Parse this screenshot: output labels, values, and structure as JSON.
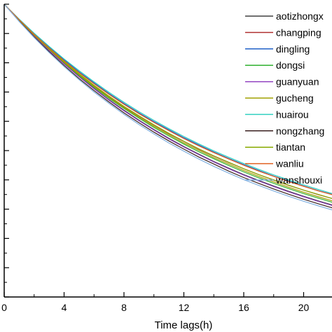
{
  "chart_data": {
    "type": "line",
    "title": "",
    "xlabel": "Time lags(h)",
    "ylabel": "",
    "xlim": [
      0,
      23
    ],
    "ylim": [
      0,
      1
    ],
    "x_ticks": [
      0,
      4,
      8,
      12,
      16,
      20
    ],
    "x_tick_labels": [
      "0",
      "4",
      "8",
      "12",
      "16",
      "20"
    ],
    "y_ticks": [
      0,
      0.1,
      0.2,
      0.3,
      0.4,
      0.5,
      0.6,
      0.7,
      0.8,
      0.9,
      1.0
    ],
    "grid": false,
    "legend_position": "top-right",
    "x": [
      0,
      1,
      2,
      3,
      4,
      5,
      6,
      7,
      8,
      9,
      10,
      11,
      12,
      13,
      14,
      15,
      16,
      17,
      18,
      19,
      20,
      21,
      22,
      23
    ],
    "series": [
      {
        "name": "aotizhongx",
        "color": "#404040",
        "values": [
          1.0,
          0.944,
          0.892,
          0.843,
          0.797,
          0.753,
          0.713,
          0.674,
          0.638,
          0.604,
          0.572,
          0.542,
          0.514,
          0.488,
          0.463,
          0.44,
          0.418,
          0.398,
          0.379,
          0.361,
          0.344,
          0.328,
          0.313,
          0.299
        ]
      },
      {
        "name": "changping",
        "color": "#b03030",
        "values": [
          1.0,
          0.946,
          0.895,
          0.848,
          0.803,
          0.761,
          0.722,
          0.685,
          0.65,
          0.618,
          0.587,
          0.558,
          0.531,
          0.505,
          0.481,
          0.459,
          0.438,
          0.418,
          0.399,
          0.381,
          0.365,
          0.349,
          0.335,
          0.321
        ]
      },
      {
        "name": "dingling",
        "color": "#2060c8",
        "values": [
          1.0,
          0.948,
          0.899,
          0.853,
          0.81,
          0.769,
          0.731,
          0.695,
          0.661,
          0.629,
          0.599,
          0.571,
          0.544,
          0.519,
          0.495,
          0.473,
          0.452,
          0.432,
          0.413,
          0.396,
          0.379,
          0.363,
          0.349,
          0.335
        ]
      },
      {
        "name": "dongsi",
        "color": "#30b030",
        "values": [
          1.0,
          0.945,
          0.893,
          0.845,
          0.8,
          0.757,
          0.717,
          0.679,
          0.644,
          0.611,
          0.579,
          0.55,
          0.522,
          0.496,
          0.472,
          0.449,
          0.427,
          0.407,
          0.388,
          0.37,
          0.353,
          0.337,
          0.322,
          0.308
        ]
      },
      {
        "name": "guanyuan",
        "color": "#9040c0",
        "values": [
          1.0,
          0.944,
          0.891,
          0.842,
          0.796,
          0.752,
          0.711,
          0.672,
          0.636,
          0.602,
          0.57,
          0.54,
          0.512,
          0.486,
          0.461,
          0.438,
          0.416,
          0.396,
          0.377,
          0.359,
          0.342,
          0.326,
          0.311,
          0.297
        ]
      },
      {
        "name": "gucheng",
        "color": "#a0a000",
        "values": [
          1.0,
          0.945,
          0.894,
          0.846,
          0.801,
          0.759,
          0.719,
          0.682,
          0.647,
          0.614,
          0.583,
          0.554,
          0.526,
          0.501,
          0.476,
          0.454,
          0.432,
          0.412,
          0.393,
          0.375,
          0.358,
          0.342,
          0.327,
          0.313
        ]
      },
      {
        "name": "huairou",
        "color": "#30d0c0",
        "values": [
          1.0,
          0.949,
          0.901,
          0.856,
          0.813,
          0.773,
          0.735,
          0.699,
          0.665,
          0.633,
          0.603,
          0.575,
          0.548,
          0.523,
          0.499,
          0.477,
          0.456,
          0.436,
          0.417,
          0.4,
          0.383,
          0.367,
          0.352,
          0.338
        ]
      },
      {
        "name": "nongzhang",
        "color": "#3a2020",
        "values": [
          1.0,
          0.942,
          0.888,
          0.838,
          0.791,
          0.746,
          0.705,
          0.666,
          0.629,
          0.595,
          0.563,
          0.533,
          0.505,
          0.478,
          0.454,
          0.43,
          0.408,
          0.388,
          0.369,
          0.351,
          0.334,
          0.318,
          0.303,
          0.289
        ]
      },
      {
        "name": "tiantan",
        "color": "#88aa00",
        "values": [
          1.0,
          0.946,
          0.896,
          0.848,
          0.804,
          0.762,
          0.723,
          0.686,
          0.651,
          0.619,
          0.588,
          0.559,
          0.532,
          0.506,
          0.482,
          0.46,
          0.438,
          0.418,
          0.4,
          0.382,
          0.365,
          0.35,
          0.335,
          0.321
        ]
      },
      {
        "name": "wanliu",
        "color": "#e06020",
        "values": [
          1.0,
          0.947,
          0.897,
          0.851,
          0.807,
          0.766,
          0.728,
          0.692,
          0.658,
          0.626,
          0.596,
          0.568,
          0.541,
          0.516,
          0.493,
          0.471,
          0.45,
          0.43,
          0.412,
          0.394,
          0.378,
          0.362,
          0.348,
          0.334
        ]
      },
      {
        "name": "wanshouxi",
        "color": "#80b0e0",
        "values": [
          1.0,
          0.941,
          0.886,
          0.835,
          0.787,
          0.742,
          0.7,
          0.661,
          0.624,
          0.589,
          0.557,
          0.526,
          0.498,
          0.471,
          0.446,
          0.423,
          0.401,
          0.381,
          0.362,
          0.344,
          0.327,
          0.311,
          0.296,
          0.282
        ]
      }
    ]
  }
}
